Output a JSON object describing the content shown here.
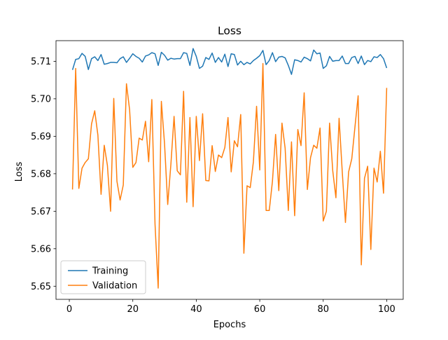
{
  "chart_data": {
    "type": "line",
    "title": "Loss",
    "xlabel": "Epochs",
    "ylabel": "Loss",
    "xlim": [
      -4.2,
      105.2
    ],
    "ylim": [
      5.6465,
      5.7155
    ],
    "xticks": [
      0,
      20,
      40,
      60,
      80,
      100
    ],
    "xtick_labels": [
      "0",
      "20",
      "40",
      "60",
      "80",
      "100"
    ],
    "yticks": [
      5.65,
      5.66,
      5.67,
      5.68,
      5.69,
      5.7,
      5.71
    ],
    "ytick_labels": [
      "5.65",
      "5.66",
      "5.67",
      "5.68",
      "5.69",
      "5.70",
      "5.71"
    ],
    "grid": false,
    "legend_position": "lower-left",
    "x": [
      1,
      2,
      3,
      4,
      5,
      6,
      7,
      8,
      9,
      10,
      11,
      12,
      13,
      14,
      15,
      16,
      17,
      18,
      19,
      20,
      21,
      22,
      23,
      24,
      25,
      26,
      27,
      28,
      29,
      30,
      31,
      32,
      33,
      34,
      35,
      36,
      37,
      38,
      39,
      40,
      41,
      42,
      43,
      44,
      45,
      46,
      47,
      48,
      49,
      50,
      51,
      52,
      53,
      54,
      55,
      56,
      57,
      58,
      59,
      60,
      61,
      62,
      63,
      64,
      65,
      66,
      67,
      68,
      69,
      70,
      71,
      72,
      73,
      74,
      75,
      76,
      77,
      78,
      79,
      80,
      81,
      82,
      83,
      84,
      85,
      86,
      87,
      88,
      89,
      90,
      91,
      92,
      93,
      94,
      95,
      96,
      97,
      98,
      99,
      100
    ],
    "series": [
      {
        "name": "Training",
        "color": "#1f77b4",
        "values": [
          5.7077,
          5.7105,
          5.7107,
          5.7121,
          5.7113,
          5.7078,
          5.7107,
          5.7112,
          5.7102,
          5.7118,
          5.7092,
          5.7094,
          5.7097,
          5.7097,
          5.7096,
          5.7107,
          5.7112,
          5.7097,
          5.7108,
          5.712,
          5.7113,
          5.7108,
          5.7098,
          5.7114,
          5.7117,
          5.7123,
          5.712,
          5.7089,
          5.7124,
          5.7116,
          5.7103,
          5.7108,
          5.7106,
          5.7107,
          5.7107,
          5.7123,
          5.7121,
          5.7089,
          5.7134,
          5.7113,
          5.7081,
          5.7087,
          5.711,
          5.7105,
          5.7122,
          5.7097,
          5.711,
          5.7098,
          5.7119,
          5.7086,
          5.712,
          5.7118,
          5.709,
          5.71,
          5.7091,
          5.7097,
          5.7093,
          5.7102,
          5.7108,
          5.7115,
          5.7129,
          5.7091,
          5.7102,
          5.7123,
          5.7099,
          5.7111,
          5.7113,
          5.7109,
          5.7089,
          5.7065,
          5.7104,
          5.7102,
          5.7098,
          5.7111,
          5.7107,
          5.7101,
          5.713,
          5.712,
          5.7122,
          5.7081,
          5.7088,
          5.7113,
          5.71,
          5.7102,
          5.7102,
          5.7114,
          5.7094,
          5.7094,
          5.711,
          5.7113,
          5.7094,
          5.7114,
          5.7091,
          5.7102,
          5.7099,
          5.7112,
          5.711,
          5.7118,
          5.7107,
          5.7082
        ]
      },
      {
        "name": "Validation",
        "color": "#ff7f0e",
        "values": [
          5.6758,
          5.7081,
          5.6761,
          5.6815,
          5.683,
          5.684,
          5.6933,
          5.6968,
          5.6903,
          5.6745,
          5.6876,
          5.6822,
          5.67,
          5.7001,
          5.678,
          5.673,
          5.677,
          5.704,
          5.697,
          5.6817,
          5.683,
          5.6895,
          5.689,
          5.694,
          5.6832,
          5.6998,
          5.6666,
          5.6495,
          5.6993,
          5.688,
          5.6718,
          5.6825,
          5.6953,
          5.6808,
          5.6797,
          5.702,
          5.6724,
          5.695,
          5.6712,
          5.6953,
          5.6835,
          5.696,
          5.6782,
          5.6781,
          5.6875,
          5.6806,
          5.685,
          5.6843,
          5.687,
          5.695,
          5.6805,
          5.6888,
          5.6872,
          5.6958,
          5.6588,
          5.6768,
          5.6763,
          5.6832,
          5.698,
          5.681,
          5.7094,
          5.6702,
          5.6702,
          5.678,
          5.6905,
          5.6755,
          5.6935,
          5.6868,
          5.6702,
          5.6885,
          5.6688,
          5.6918,
          5.6875,
          5.7016,
          5.6758,
          5.6843,
          5.6876,
          5.6868,
          5.6922,
          5.6674,
          5.67,
          5.6935,
          5.6808,
          5.6736,
          5.6948,
          5.6805,
          5.667,
          5.6805,
          5.684,
          5.6925,
          5.7008,
          5.6557,
          5.6788,
          5.682,
          5.6598,
          5.6815,
          5.6778,
          5.686,
          5.6748,
          5.7029
        ]
      }
    ]
  }
}
